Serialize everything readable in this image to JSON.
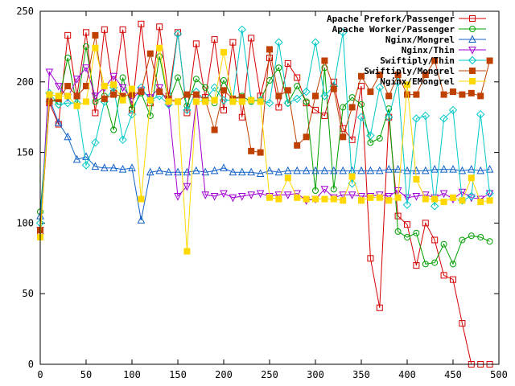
{
  "chart_data": {
    "type": "line",
    "title": "",
    "xlabel": "",
    "ylabel": "",
    "xlim": [
      0,
      500
    ],
    "ylim": [
      0,
      250
    ],
    "grid": false,
    "legend_position": "top-right",
    "xticks": [
      0,
      50,
      100,
      150,
      200,
      250,
      300,
      350,
      400,
      450,
      500
    ],
    "yticks": [
      0,
      50,
      100,
      150,
      200,
      250
    ],
    "x": [
      0,
      5,
      15,
      20,
      25,
      35,
      45,
      55,
      65,
      75,
      85,
      95,
      105,
      115,
      125,
      135,
      145,
      155,
      165,
      175,
      185,
      195,
      205,
      215,
      225,
      235,
      245,
      255,
      265,
      275,
      285,
      295,
      305,
      315,
      325,
      335,
      345,
      355,
      365,
      375,
      385,
      395,
      405,
      415,
      425,
      435,
      445,
      455,
      465,
      475,
      485,
      495
    ],
    "series": [
      {
        "name": "Apache Prefork/Passenger",
        "color": "#d40000",
        "marker": "square-open",
        "x": [
          0,
          10,
          20,
          30,
          40,
          50,
          60,
          70,
          80,
          90,
          100,
          110,
          120,
          130,
          140,
          150,
          160,
          170,
          180,
          190,
          200,
          210,
          220,
          230,
          240,
          250,
          260,
          270,
          280,
          290,
          300,
          310,
          320,
          330,
          340,
          350,
          360,
          370,
          380,
          390,
          400,
          410,
          420,
          430,
          440,
          450,
          460,
          470,
          480,
          490
        ],
        "values": [
          92,
          185,
          170,
          233,
          190,
          235,
          178,
          237,
          192,
          237,
          180,
          241,
          185,
          239,
          190,
          235,
          178,
          227,
          189,
          230,
          180,
          228,
          175,
          231,
          190,
          217,
          182,
          213,
          203,
          185,
          180,
          176,
          200,
          167,
          159,
          197,
          75,
          40,
          175,
          105,
          99,
          70,
          100,
          88,
          63,
          60,
          29,
          0,
          0,
          0
        ]
      },
      {
        "name": "Apache Worker/Passenger",
        "color": "#00a000",
        "marker": "circle-open",
        "x": [
          0,
          10,
          20,
          30,
          40,
          50,
          60,
          70,
          80,
          90,
          100,
          110,
          120,
          130,
          140,
          150,
          160,
          170,
          180,
          190,
          200,
          210,
          220,
          230,
          240,
          250,
          260,
          270,
          280,
          290,
          300,
          310,
          320,
          330,
          340,
          350,
          360,
          370,
          380,
          390,
          400,
          410,
          420,
          430,
          440,
          450,
          460,
          470,
          480,
          490
        ],
        "values": [
          108,
          187,
          186,
          217,
          183,
          225,
          186,
          190,
          166,
          203,
          181,
          192,
          176,
          218,
          186,
          203,
          183,
          202,
          196,
          185,
          201,
          188,
          190,
          186,
          187,
          201,
          210,
          185,
          197,
          186,
          123,
          210,
          124,
          182,
          189,
          184,
          157,
          160,
          181,
          94,
          90,
          93,
          71,
          72,
          85,
          71,
          88,
          91,
          90,
          87
        ]
      },
      {
        "name": "Nginx/Mongrel",
        "color": "#1060c8",
        "marker": "triangle-open",
        "x": [
          0,
          10,
          20,
          30,
          40,
          50,
          60,
          70,
          80,
          90,
          100,
          110,
          120,
          130,
          140,
          150,
          160,
          170,
          180,
          190,
          200,
          210,
          220,
          230,
          240,
          250,
          260,
          270,
          280,
          290,
          300,
          310,
          320,
          330,
          340,
          350,
          360,
          370,
          380,
          390,
          400,
          410,
          420,
          430,
          440,
          450,
          460,
          470,
          480,
          490
        ],
        "values": [
          105,
          188,
          171,
          161,
          145,
          147,
          140,
          139,
          139,
          138,
          139,
          102,
          136,
          137,
          136,
          136,
          136,
          137,
          136,
          137,
          139,
          136,
          136,
          136,
          135,
          137,
          136,
          137,
          137,
          137,
          137,
          137,
          137,
          137,
          137,
          137,
          137,
          137,
          138,
          138,
          137,
          137,
          137,
          138,
          138,
          138,
          137,
          138,
          137,
          138
        ]
      },
      {
        "name": "Nginx/Thin",
        "color": "#a000d4",
        "marker": "triangle-down-open",
        "x": [
          0,
          10,
          20,
          30,
          40,
          50,
          60,
          70,
          80,
          90,
          100,
          110,
          120,
          130,
          140,
          150,
          160,
          170,
          180,
          190,
          200,
          210,
          220,
          230,
          240,
          250,
          260,
          270,
          280,
          290,
          300,
          310,
          320,
          330,
          340,
          350,
          360,
          370,
          380,
          390,
          400,
          410,
          420,
          430,
          440,
          450,
          460,
          470,
          480,
          490
        ],
        "values": [
          95,
          207,
          197,
          189,
          202,
          210,
          190,
          196,
          204,
          196,
          188,
          194,
          189,
          196,
          184,
          119,
          126,
          187,
          120,
          119,
          121,
          118,
          119,
          120,
          121,
          119,
          120,
          120,
          121,
          116,
          117,
          124,
          118,
          120,
          120,
          119,
          119,
          120,
          119,
          123,
          118,
          119,
          120,
          118,
          121,
          117,
          122,
          118,
          117,
          121
        ]
      },
      {
        "name": "Swiftiply/Thin",
        "color": "#00c8c8",
        "marker": "diamond-open",
        "x": [
          0,
          10,
          20,
          30,
          40,
          50,
          60,
          70,
          80,
          90,
          100,
          110,
          120,
          130,
          140,
          150,
          160,
          170,
          180,
          190,
          200,
          210,
          220,
          230,
          240,
          250,
          260,
          270,
          280,
          290,
          300,
          310,
          320,
          330,
          340,
          350,
          360,
          370,
          380,
          390,
          400,
          410,
          420,
          430,
          440,
          450,
          460,
          470,
          480,
          490
        ],
        "values": [
          100,
          192,
          184,
          185,
          185,
          141,
          157,
          186,
          196,
          159,
          177,
          196,
          187,
          190,
          184,
          234,
          180,
          193,
          187,
          196,
          187,
          187,
          237,
          187,
          187,
          185,
          228,
          185,
          188,
          193,
          228,
          190,
          197,
          235,
          128,
          175,
          162,
          196,
          175,
          200,
          113,
          174,
          176,
          112,
          174,
          180,
          116,
          119,
          177,
          121
        ]
      },
      {
        "name": "Swiftiply/Mongrel",
        "color": "#c04000",
        "marker": "square-filled",
        "x": [
          0,
          10,
          20,
          30,
          40,
          50,
          60,
          70,
          80,
          90,
          100,
          110,
          120,
          130,
          140,
          150,
          160,
          170,
          180,
          190,
          200,
          210,
          220,
          230,
          240,
          250,
          260,
          270,
          280,
          290,
          300,
          310,
          320,
          330,
          340,
          350,
          360,
          370,
          380,
          390,
          400,
          410,
          420,
          430,
          440,
          450,
          460,
          470,
          480,
          490
        ],
        "values": [
          95,
          186,
          188,
          197,
          190,
          197,
          233,
          188,
          191,
          190,
          191,
          193,
          220,
          193,
          188,
          186,
          191,
          191,
          187,
          166,
          194,
          188,
          189,
          151,
          150,
          223,
          190,
          194,
          155,
          161,
          190,
          215,
          195,
          161,
          182,
          204,
          193,
          205,
          190,
          205,
          191,
          191,
          205,
          215,
          191,
          193,
          191,
          192,
          190,
          215
        ]
      },
      {
        "name": "Nginx/EMongrel",
        "color": "#ffd800",
        "marker": "square-filled",
        "x": [
          0,
          10,
          20,
          30,
          40,
          50,
          60,
          70,
          80,
          90,
          100,
          110,
          120,
          130,
          140,
          150,
          160,
          170,
          180,
          190,
          200,
          210,
          220,
          230,
          240,
          250,
          260,
          270,
          280,
          290,
          300,
          310,
          320,
          330,
          340,
          350,
          360,
          370,
          380,
          390,
          400,
          410,
          420,
          430,
          440,
          450,
          460,
          470,
          480,
          490
        ],
        "values": [
          90,
          191,
          190,
          190,
          183,
          186,
          224,
          197,
          198,
          187,
          195,
          117,
          187,
          224,
          186,
          186,
          80,
          186,
          186,
          187,
          221,
          186,
          186,
          187,
          186,
          118,
          117,
          132,
          118,
          117,
          117,
          117,
          117,
          116,
          133,
          116,
          118,
          118,
          116,
          118,
          198,
          131,
          117,
          117,
          115,
          118,
          116,
          132,
          115,
          116
        ]
      }
    ]
  }
}
